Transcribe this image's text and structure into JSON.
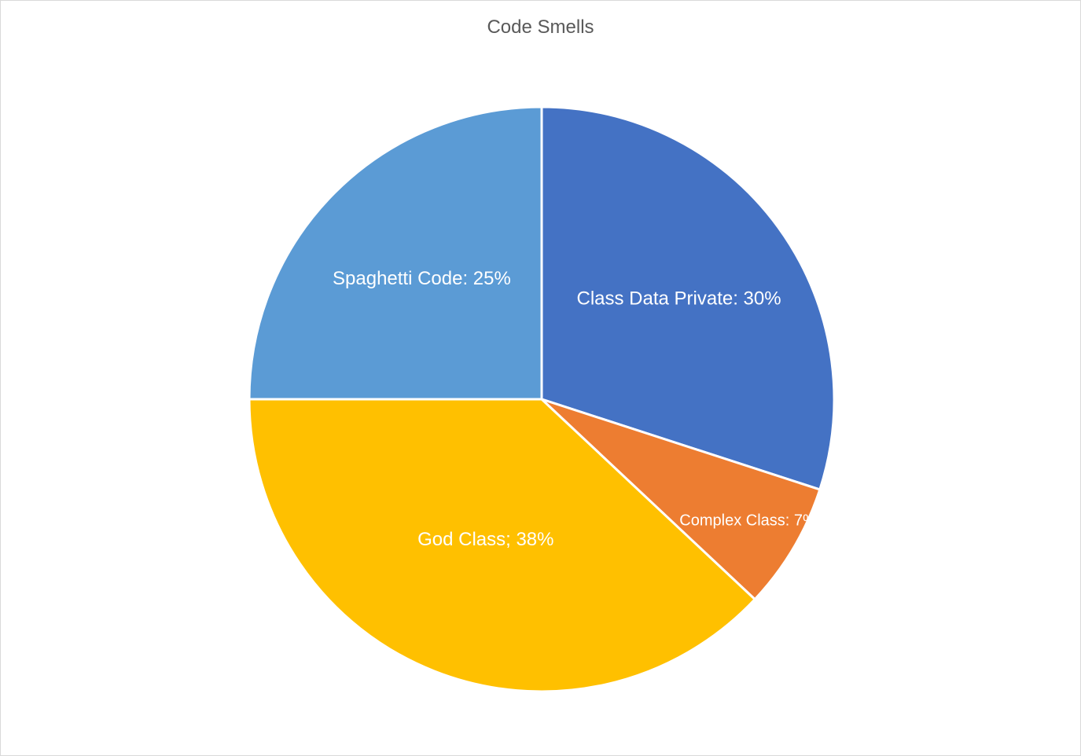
{
  "chart_data": {
    "type": "pie",
    "title": "Code Smells",
    "slices": [
      {
        "label": "Class Data Private",
        "value": 30,
        "color": "#4472C4",
        "data_label": "Class Data Private: 30%"
      },
      {
        "label": "Complex Class",
        "value": 7,
        "color": "#ED7D31",
        "data_label": "Complex Class: 7%"
      },
      {
        "label": "God Class",
        "value": 38,
        "color": "#FFC000",
        "data_label": "God Class; 38%"
      },
      {
        "label": "Spaghetti Code",
        "value": 25,
        "color": "#5B9BD5",
        "data_label": "Spaghetti Code: 25%"
      }
    ],
    "start_angle": "12 o'clock",
    "direction": "clockwise",
    "legend": "none"
  }
}
